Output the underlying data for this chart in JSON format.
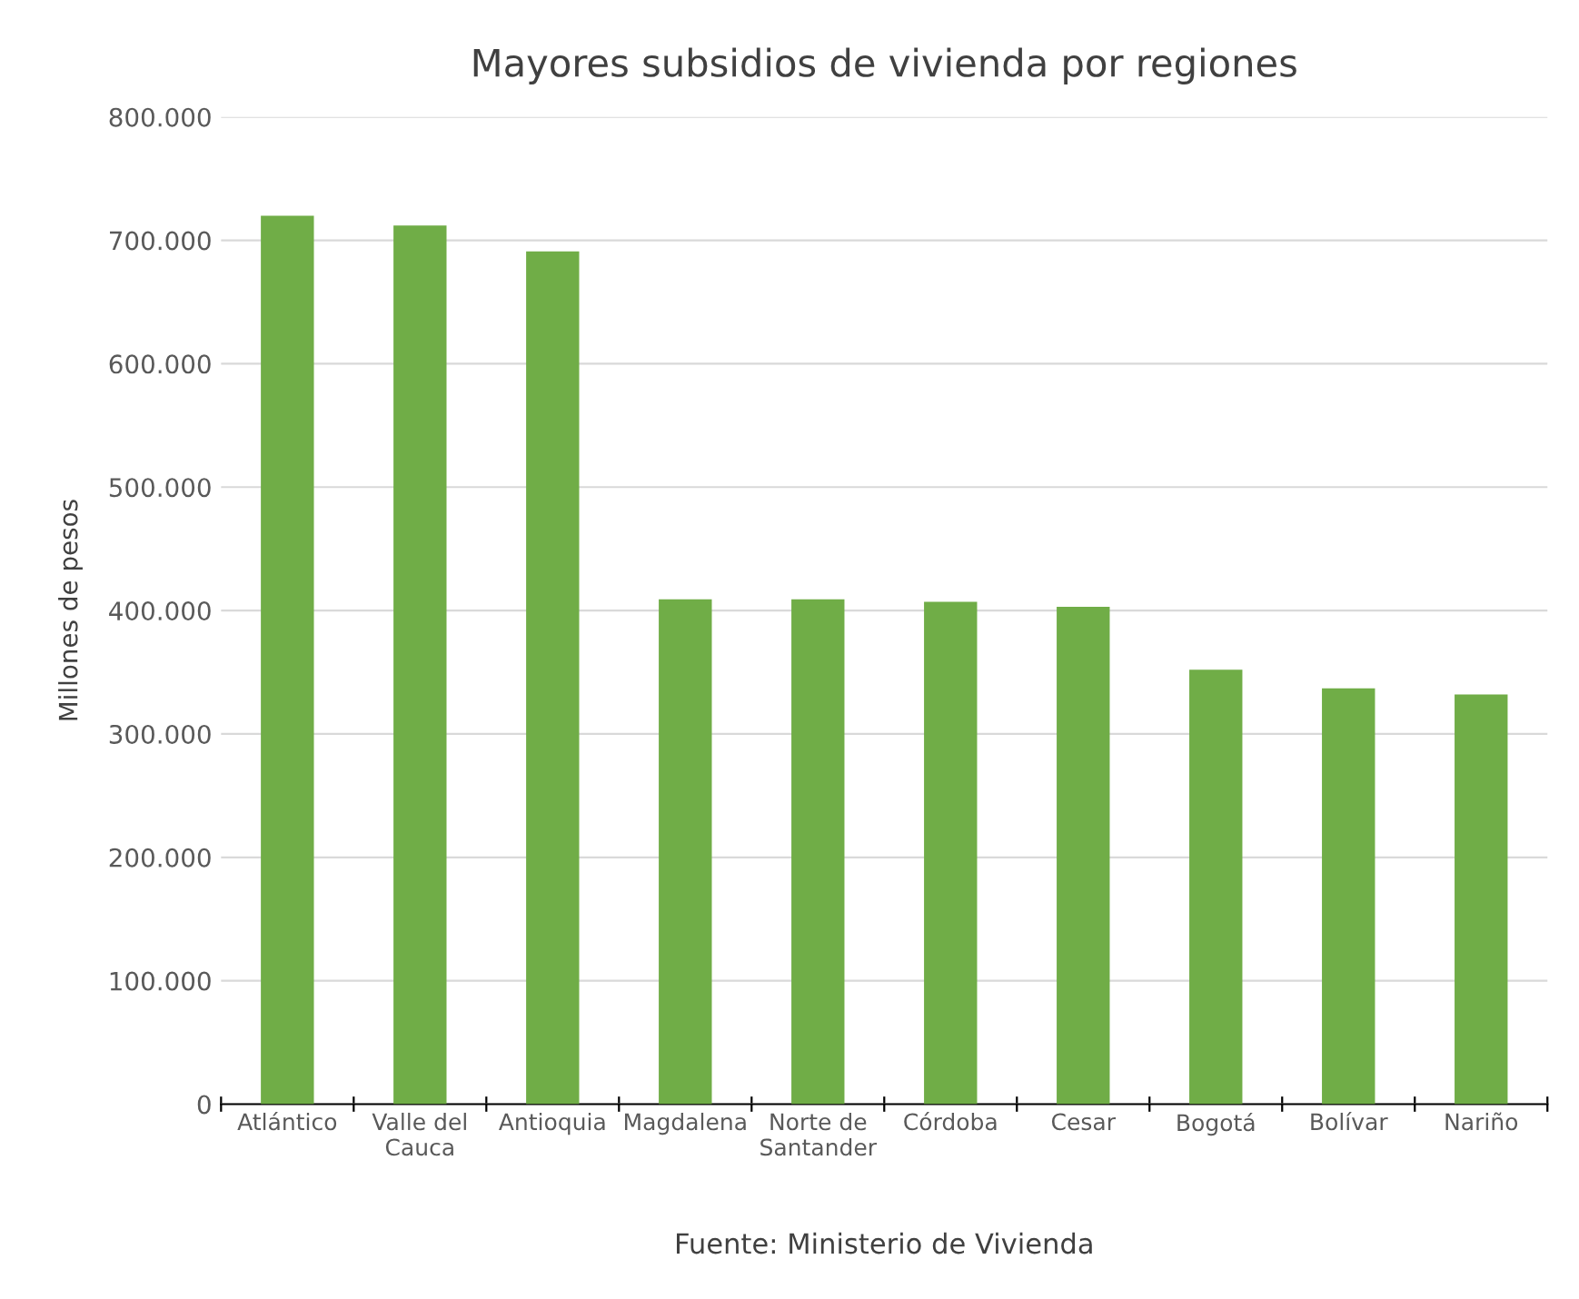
{
  "chart_data": {
    "type": "bar",
    "title": "Mayores subsidios de vivienda por regiones",
    "ylabel": "Millones de pesos",
    "categories": [
      "Atlántico",
      "Valle del\nCauca",
      "Antioquia",
      "Magdalena",
      "Norte de\nSantander",
      "Córdoba",
      "Cesar",
      "Bogotá",
      "Bolívar",
      "Nariño"
    ],
    "values": [
      720000,
      712000,
      691000,
      409000,
      409000,
      407000,
      403000,
      352000,
      337000,
      332000
    ],
    "color": "#70ad47",
    "ylim": [
      0,
      800000
    ],
    "yticks": [
      0,
      {
        "value": 100000,
        "label": "100.000"
      },
      {
        "value": 200000,
        "label": "200.000"
      },
      {
        "value": 300000,
        "label": "300.000"
      },
      {
        "value": 400000,
        "label": "400.000"
      },
      {
        "value": 500000,
        "label": "500.000"
      },
      {
        "value": 600000,
        "label": "600.000"
      },
      {
        "value": 700000,
        "label": "700.000"
      },
      {
        "value": 800000,
        "label": "800.000"
      }
    ],
    "grid": "y",
    "annotations": [
      "Fuente: Ministerio de Vivienda"
    ]
  }
}
